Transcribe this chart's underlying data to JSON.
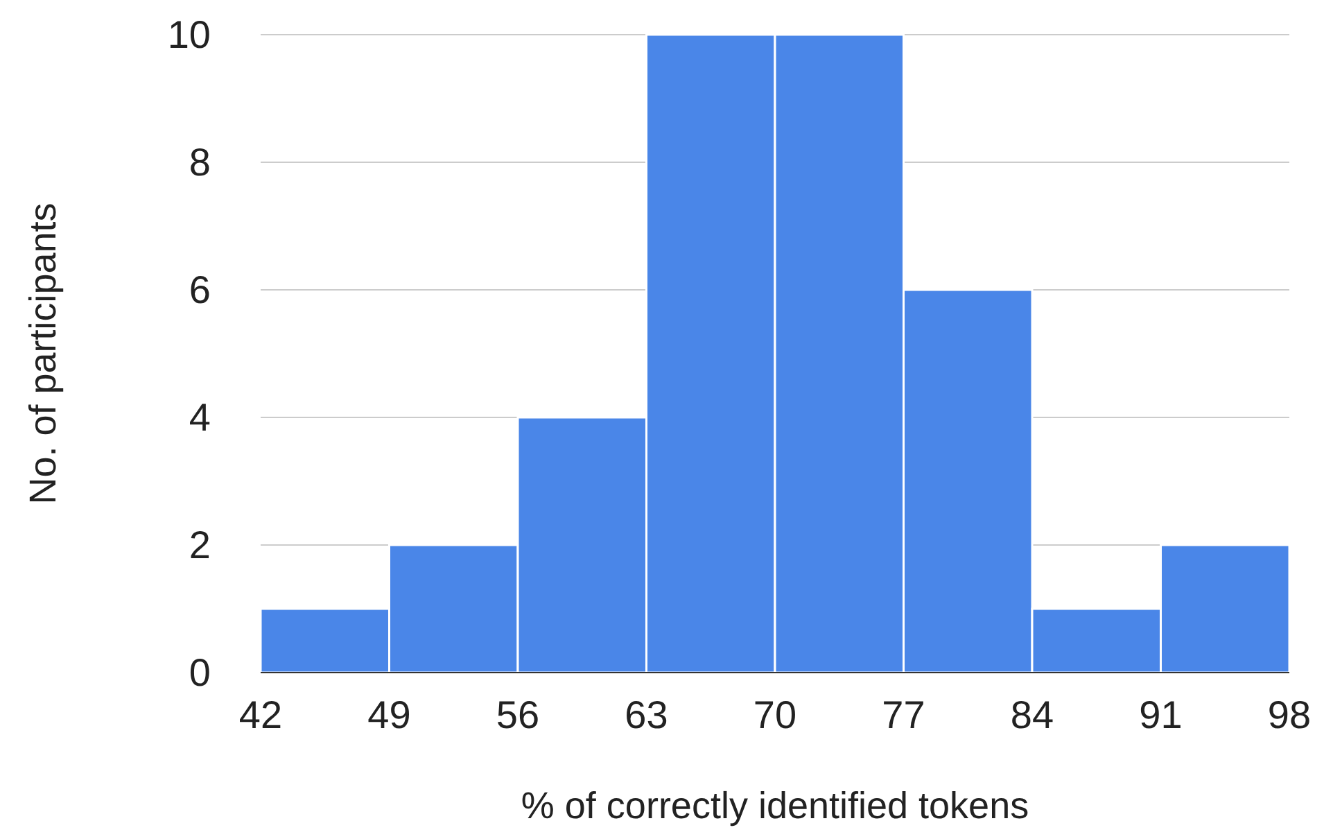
{
  "chart_data": {
    "type": "histogram",
    "xlabel": "% of correctly identified tokens",
    "ylabel": "No. of participants",
    "bins": [
      42,
      49,
      56,
      63,
      70,
      77,
      84,
      91,
      98
    ],
    "values": [
      1,
      2,
      4,
      10,
      10,
      6,
      1,
      2
    ],
    "color": "#4a86e8",
    "xlim": [
      42,
      98
    ],
    "xticks": [
      42,
      49,
      56,
      63,
      70,
      77,
      84,
      91,
      98
    ],
    "ylim": [
      0,
      10
    ],
    "yticks": [
      0,
      2,
      4,
      6,
      8,
      10
    ],
    "grid": "y"
  }
}
